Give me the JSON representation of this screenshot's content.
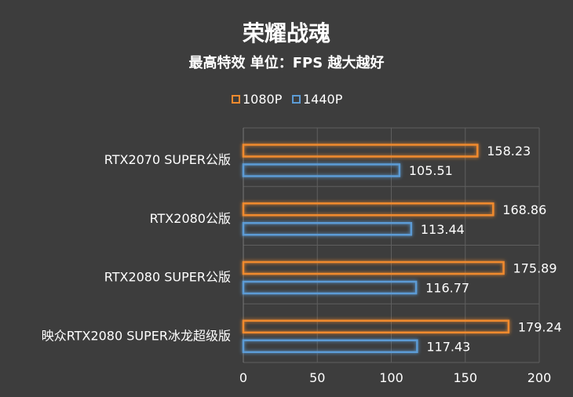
{
  "title": "荣耀战魂",
  "subtitle": "最高特效 单位：FPS 越大越好",
  "chart_data": {
    "type": "bar",
    "orientation": "horizontal",
    "title": "荣耀战魂",
    "subtitle": "最高特效 单位：FPS 越大越好",
    "categories": [
      "RTX2070 SUPER公版",
      "RTX2080公版",
      "RTX2080 SUPER公版",
      "映众RTX2080 SUPER冰龙超级版"
    ],
    "series": [
      {
        "name": "1080P",
        "color": "#f08a2e",
        "values": [
          158.23,
          168.86,
          175.89,
          179.24
        ],
        "labels": [
          "158.23",
          "168.86",
          "175.89",
          "179.24"
        ]
      },
      {
        "name": "1440P",
        "color": "#5b9bd5",
        "values": [
          105.51,
          113.44,
          116.77,
          117.43
        ],
        "labels": [
          "105.51",
          "113.44",
          "116.77",
          "117.43"
        ]
      }
    ],
    "xlim": [
      0,
      200
    ],
    "xticks": [
      0,
      50,
      100,
      150,
      200
    ],
    "xtick_labels": [
      "0",
      "50",
      "100",
      "150",
      "200"
    ],
    "grid": true,
    "legend_position": "top-center",
    "background": "#3d3d3d"
  }
}
